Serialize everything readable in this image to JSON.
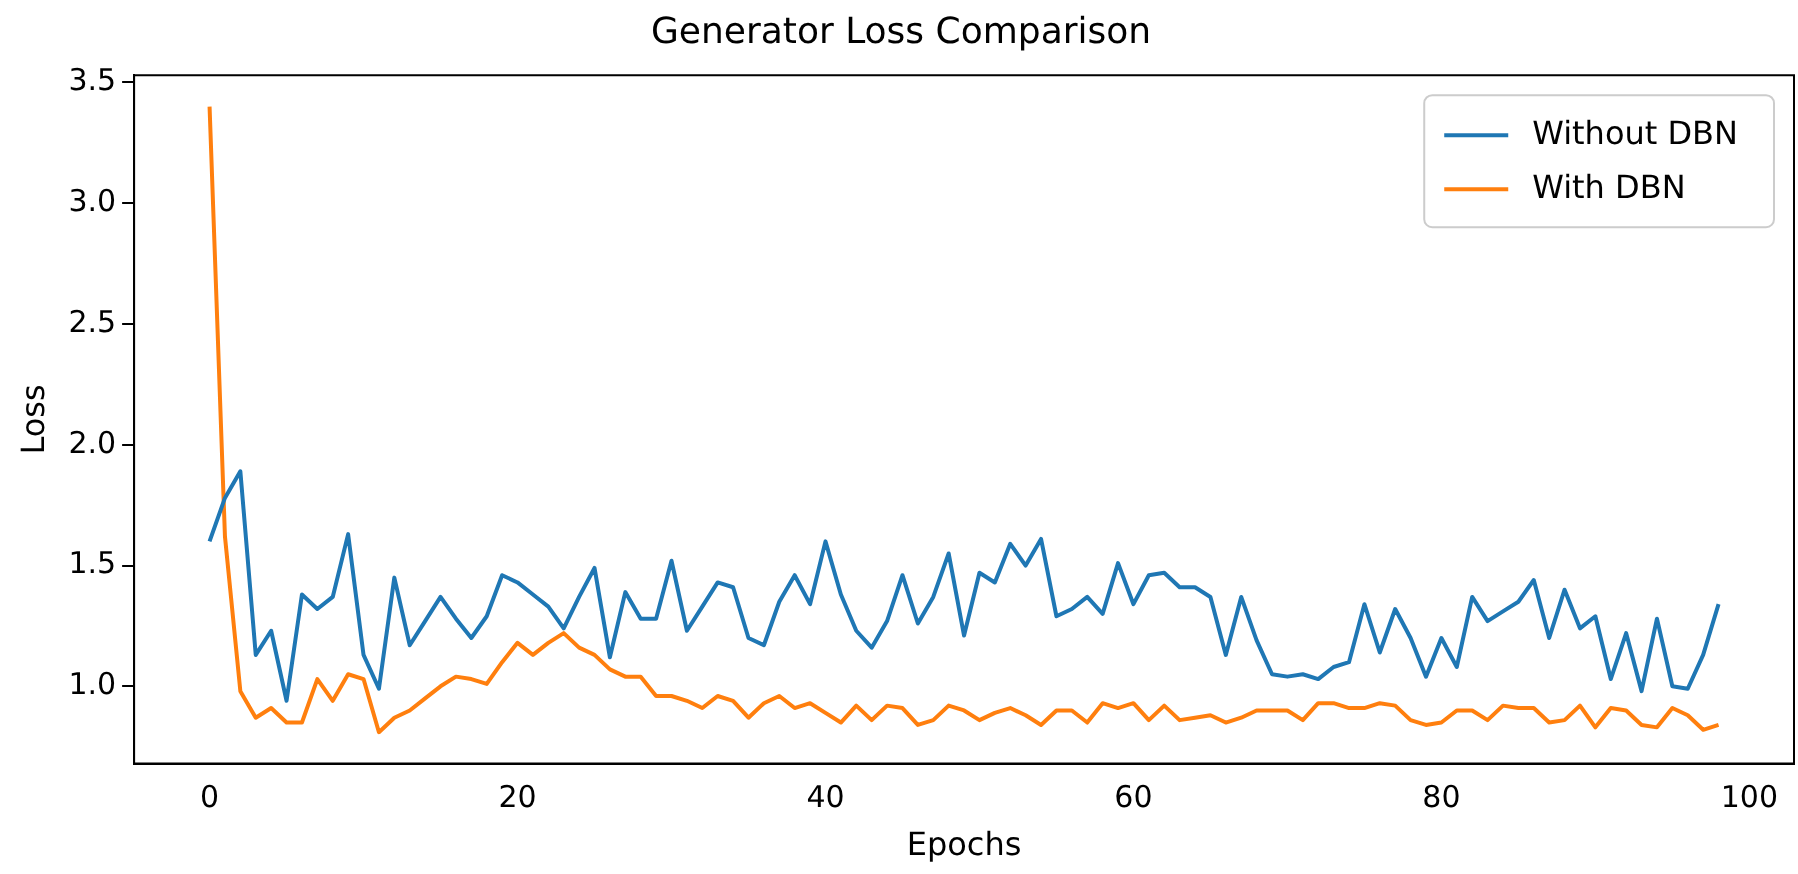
{
  "chart_data": {
    "type": "line",
    "title": "Generator Loss Comparison",
    "xlabel": "Epochs",
    "ylabel": "Loss",
    "x": [
      0,
      1,
      2,
      3,
      4,
      5,
      6,
      7,
      8,
      9,
      10,
      11,
      12,
      13,
      14,
      15,
      16,
      17,
      18,
      19,
      20,
      21,
      22,
      23,
      24,
      25,
      26,
      27,
      28,
      29,
      30,
      31,
      32,
      33,
      34,
      35,
      36,
      37,
      38,
      39,
      40,
      41,
      42,
      43,
      44,
      45,
      46,
      47,
      48,
      49,
      50,
      51,
      52,
      53,
      54,
      55,
      56,
      57,
      58,
      59,
      60,
      61,
      62,
      63,
      64,
      65,
      66,
      67,
      68,
      69,
      70,
      71,
      72,
      73,
      74,
      75,
      76,
      77,
      78,
      79,
      80,
      81,
      82,
      83,
      84,
      85,
      86,
      87,
      88,
      89,
      90,
      91,
      92,
      93,
      94,
      95,
      96,
      97,
      98
    ],
    "series": [
      {
        "name": "Without DBN",
        "color": "#1f77b4",
        "values": [
          1.6,
          1.78,
          1.89,
          1.13,
          1.23,
          0.94,
          1.38,
          1.32,
          1.37,
          1.63,
          1.13,
          0.99,
          1.45,
          1.17,
          1.27,
          1.37,
          1.28,
          1.2,
          1.29,
          1.46,
          1.43,
          1.38,
          1.33,
          1.24,
          1.37,
          1.49,
          1.12,
          1.39,
          1.28,
          1.28,
          1.52,
          1.23,
          1.33,
          1.43,
          1.41,
          1.2,
          1.17,
          1.35,
          1.46,
          1.34,
          1.6,
          1.38,
          1.23,
          1.16,
          1.27,
          1.46,
          1.26,
          1.37,
          1.55,
          1.21,
          1.47,
          1.43,
          1.59,
          1.5,
          1.61,
          1.29,
          1.32,
          1.37,
          1.3,
          1.51,
          1.34,
          1.46,
          1.47,
          1.41,
          1.41,
          1.37,
          1.13,
          1.37,
          1.19,
          1.05,
          1.04,
          1.05,
          1.03,
          1.08,
          1.1,
          1.34,
          1.14,
          1.32,
          1.2,
          1.04,
          1.2,
          1.08,
          1.37,
          1.27,
          1.31,
          1.35,
          1.44,
          1.2,
          1.4,
          1.24,
          1.29,
          1.03,
          1.22,
          0.98,
          1.28,
          1.0,
          0.99,
          1.13,
          1.34
        ]
      },
      {
        "name": "With DBN",
        "color": "#ff7f0e",
        "values": [
          3.4,
          1.62,
          0.98,
          0.87,
          0.91,
          0.85,
          0.85,
          1.03,
          0.94,
          1.05,
          1.03,
          0.81,
          0.87,
          0.9,
          0.95,
          1.0,
          1.04,
          1.03,
          1.01,
          1.1,
          1.18,
          1.13,
          1.18,
          1.22,
          1.16,
          1.13,
          1.07,
          1.04,
          1.04,
          0.96,
          0.96,
          0.94,
          0.91,
          0.96,
          0.94,
          0.87,
          0.93,
          0.96,
          0.91,
          0.93,
          0.89,
          0.85,
          0.92,
          0.86,
          0.92,
          0.91,
          0.84,
          0.86,
          0.92,
          0.9,
          0.86,
          0.89,
          0.91,
          0.88,
          0.84,
          0.9,
          0.9,
          0.85,
          0.93,
          0.91,
          0.93,
          0.86,
          0.92,
          0.86,
          0.87,
          0.88,
          0.85,
          0.87,
          0.9,
          0.9,
          0.9,
          0.86,
          0.93,
          0.93,
          0.91,
          0.91,
          0.93,
          0.92,
          0.86,
          0.84,
          0.85,
          0.9,
          0.9,
          0.86,
          0.92,
          0.91,
          0.91,
          0.85,
          0.86,
          0.92,
          0.83,
          0.91,
          0.9,
          0.84,
          0.83,
          0.91,
          0.88,
          0.82,
          0.84
        ]
      }
    ],
    "xlim": [
      -4.9,
      102.9
    ],
    "xticks": [
      0,
      20,
      40,
      60,
      80,
      100
    ],
    "ylim": [
      0.68,
      3.53
    ],
    "yticks": [
      {
        "value": 1,
        "label": "1.0"
      },
      {
        "value": 1.5,
        "label": "1.5"
      },
      {
        "value": 2,
        "label": "2.0"
      },
      {
        "value": 2.5,
        "label": "2.5"
      },
      {
        "value": 3,
        "label": "3.0"
      },
      {
        "value": 3.5,
        "label": "3.5"
      }
    ],
    "legend": "top right",
    "marker": "none",
    "line_style": "solid",
    "grid": false
  }
}
